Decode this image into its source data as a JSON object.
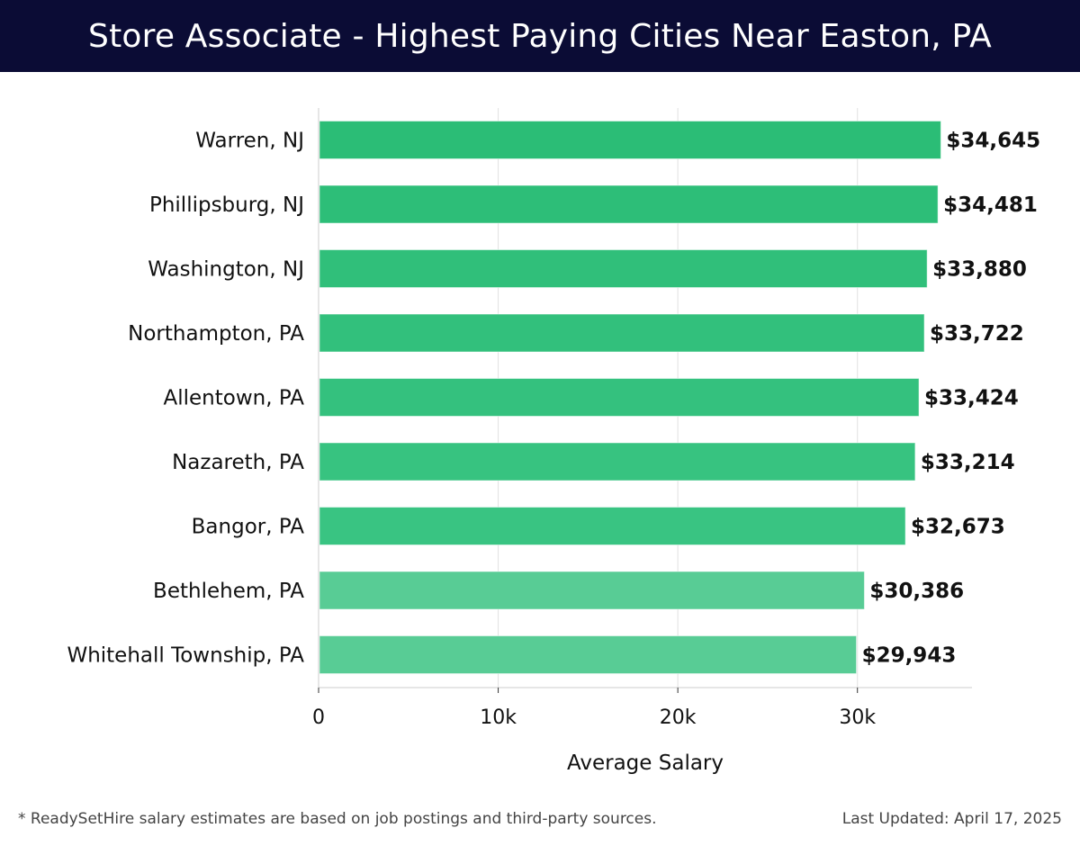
{
  "title": "Store Associate - Highest Paying Cities Near Easton, PA",
  "footer": {
    "note": "* ReadySetHire salary estimates are based on job postings and third-party sources.",
    "updated": "Last Updated: April 17, 2025"
  },
  "colors": {
    "header_bg": "#0b0c35",
    "bar_dark": "#2bbd76",
    "bar_light": "#58cc95",
    "grid": "#e2e2e2",
    "axis": "#cccccc"
  },
  "chart_data": {
    "type": "bar",
    "orientation": "horizontal",
    "categories": [
      "Warren, NJ",
      "Phillipsburg, NJ",
      "Washington, NJ",
      "Northampton, PA",
      "Allentown, PA",
      "Nazareth, PA",
      "Bangor, PA",
      "Bethlehem, PA",
      "Whitehall Township, PA"
    ],
    "values": [
      34645,
      34481,
      33880,
      33722,
      33424,
      33214,
      32673,
      30386,
      29943
    ],
    "value_labels": [
      "$34,645",
      "$34,481",
      "$33,880",
      "$33,722",
      "$33,424",
      "$33,214",
      "$32,673",
      "$30,386",
      "$29,943"
    ],
    "xlabel": "Average Salary",
    "ylabel": "",
    "xlim": [
      0,
      36378
    ],
    "xticks": [
      0,
      10000,
      20000,
      30000
    ],
    "xtick_labels": [
      "0",
      "10k",
      "20k",
      "30k"
    ],
    "grid": "vertical",
    "legend": "none"
  }
}
